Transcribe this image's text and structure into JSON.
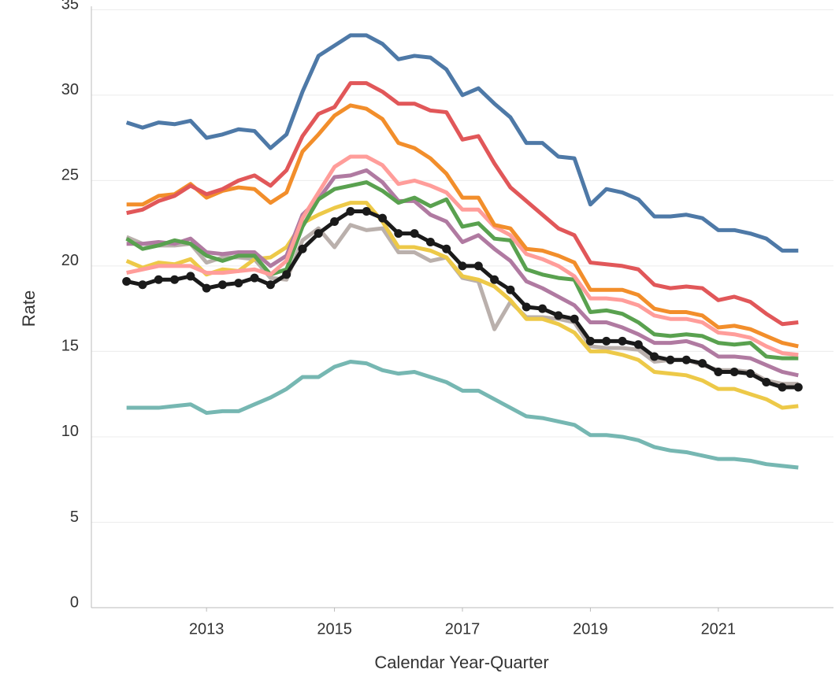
{
  "chart_data": {
    "type": "line",
    "x_label": "Calendar Year-Quarter",
    "y_label": "Rate",
    "x": [
      2011.75,
      2012,
      2012.25,
      2012.5,
      2012.75,
      2013,
      2013.25,
      2013.5,
      2013.75,
      2014,
      2014.25,
      2014.5,
      2014.75,
      2015,
      2015.25,
      2015.5,
      2015.75,
      2016,
      2016.25,
      2016.5,
      2016.75,
      2017,
      2017.25,
      2017.5,
      2017.75,
      2018,
      2018.25,
      2018.5,
      2018.75,
      2019,
      2019.25,
      2019.5,
      2019.75,
      2020,
      2020.25,
      2020.5,
      2020.75,
      2021,
      2021.25,
      2021.5,
      2021.75,
      2022,
      2022.25
    ],
    "xlim": [
      2011.2,
      2022.8
    ],
    "xticks": [
      2013,
      2015,
      2017,
      2019,
      2021
    ],
    "ylim": [
      0,
      35.2
    ],
    "yticks": [
      0,
      5,
      10,
      15,
      20,
      25,
      30,
      35
    ],
    "grid": true,
    "series": [
      {
        "color": "#76b7b2",
        "values": [
          11.7,
          11.7,
          11.7,
          11.8,
          11.9,
          11.4,
          11.5,
          11.5,
          11.9,
          12.3,
          12.8,
          13.5,
          13.5,
          14.1,
          14.4,
          14.3,
          13.9,
          13.7,
          13.8,
          13.5,
          13.2,
          12.7,
          12.7,
          12.2,
          11.7,
          11.2,
          11.1,
          10.9,
          10.7,
          10.1,
          10.1,
          10.0,
          9.8,
          9.4,
          9.2,
          9.1,
          8.9,
          8.7,
          8.7,
          8.6,
          8.4,
          8.3,
          8.2
        ]
      },
      {
        "color": "#bab0ac",
        "values": [
          21.7,
          21.3,
          21.2,
          21.2,
          21.3,
          20.2,
          20.5,
          20.5,
          20.4,
          19.3,
          19.2,
          21.5,
          22.2,
          21.1,
          22.4,
          22.1,
          22.2,
          20.8,
          20.8,
          20.3,
          20.5,
          19.3,
          19.1,
          16.3,
          17.9,
          17.0,
          17.0,
          16.9,
          16.7,
          15.3,
          15.2,
          15.2,
          15.1,
          14.4,
          14.5,
          14.5,
          14.2,
          13.9,
          13.9,
          13.8,
          13.3,
          13.1,
          13.1
        ]
      },
      {
        "color": "#edc948",
        "values": [
          20.3,
          19.9,
          20.2,
          20.1,
          20.4,
          19.5,
          19.8,
          19.7,
          20.4,
          20.5,
          21.1,
          22.5,
          23.0,
          23.4,
          23.7,
          23.7,
          22.6,
          21.1,
          21.1,
          20.9,
          20.5,
          19.4,
          19.2,
          18.8,
          18.0,
          16.9,
          16.9,
          16.6,
          16.1,
          15.0,
          15.0,
          14.8,
          14.5,
          13.8,
          13.7,
          13.6,
          13.3,
          12.8,
          12.8,
          12.5,
          12.2,
          11.7,
          11.8
        ]
      },
      {
        "color": "#b07aa1",
        "values": [
          21.3,
          21.3,
          21.4,
          21.3,
          21.6,
          20.8,
          20.7,
          20.8,
          20.8,
          20.0,
          20.6,
          23.0,
          23.9,
          25.2,
          25.3,
          25.6,
          24.9,
          23.8,
          23.8,
          23.0,
          22.6,
          21.4,
          21.8,
          21.0,
          20.3,
          19.1,
          18.7,
          18.2,
          17.7,
          16.7,
          16.7,
          16.4,
          16.0,
          15.5,
          15.5,
          15.6,
          15.3,
          14.7,
          14.7,
          14.6,
          14.2,
          13.8,
          13.6
        ]
      },
      {
        "color": "#59a14f",
        "values": [
          21.6,
          21.0,
          21.2,
          21.5,
          21.3,
          20.6,
          20.3,
          20.6,
          20.6,
          19.5,
          19.8,
          22.3,
          23.9,
          24.5,
          24.7,
          24.9,
          24.4,
          23.7,
          24.0,
          23.5,
          23.9,
          22.3,
          22.5,
          21.6,
          21.5,
          19.8,
          19.5,
          19.3,
          19.2,
          17.3,
          17.4,
          17.2,
          16.7,
          16.0,
          15.9,
          16.0,
          15.9,
          15.5,
          15.4,
          15.5,
          14.7,
          14.6,
          14.6
        ]
      },
      {
        "color": "#ff9d9a",
        "values": [
          19.6,
          19.8,
          20.0,
          20.0,
          20.0,
          19.6,
          19.6,
          19.7,
          19.8,
          19.5,
          20.3,
          22.8,
          24.3,
          25.8,
          26.4,
          26.4,
          25.9,
          24.8,
          25.0,
          24.7,
          24.3,
          23.3,
          23.3,
          22.3,
          21.8,
          20.7,
          20.4,
          20.0,
          19.4,
          18.1,
          18.1,
          18.0,
          17.7,
          17.1,
          16.9,
          16.9,
          16.7,
          16.1,
          16.0,
          15.8,
          15.3,
          14.9,
          14.8
        ]
      },
      {
        "color": "#f28e2b",
        "values": [
          23.6,
          23.6,
          24.1,
          24.2,
          24.8,
          24.0,
          24.4,
          24.6,
          24.5,
          23.7,
          24.3,
          26.7,
          27.7,
          28.8,
          29.4,
          29.2,
          28.6,
          27.2,
          26.9,
          26.3,
          25.4,
          24.0,
          24.0,
          22.4,
          22.2,
          21.0,
          20.9,
          20.6,
          20.2,
          18.6,
          18.6,
          18.6,
          18.3,
          17.5,
          17.3,
          17.3,
          17.1,
          16.4,
          16.5,
          16.3,
          15.9,
          15.5,
          15.3
        ]
      },
      {
        "color": "#e15759",
        "values": [
          23.1,
          23.3,
          23.8,
          24.1,
          24.7,
          24.2,
          24.5,
          25.0,
          25.3,
          24.7,
          25.6,
          27.6,
          28.9,
          29.3,
          30.7,
          30.7,
          30.2,
          29.5,
          29.5,
          29.1,
          29.0,
          27.4,
          27.6,
          26.0,
          24.6,
          23.8,
          23.0,
          22.2,
          21.8,
          20.2,
          20.1,
          20.0,
          19.8,
          18.9,
          18.7,
          18.8,
          18.7,
          18.0,
          18.2,
          17.9,
          17.2,
          16.6,
          16.7
        ]
      },
      {
        "color": "#4e79a7",
        "values": [
          28.4,
          28.1,
          28.4,
          28.3,
          28.5,
          27.5,
          27.7,
          28.0,
          27.9,
          26.9,
          27.7,
          30.2,
          32.3,
          32.9,
          33.5,
          33.5,
          33.0,
          32.1,
          32.3,
          32.2,
          31.5,
          30.0,
          30.4,
          29.5,
          28.7,
          27.2,
          27.2,
          26.4,
          26.3,
          23.6,
          24.5,
          24.3,
          23.9,
          22.9,
          22.9,
          23.0,
          22.8,
          22.1,
          22.1,
          21.9,
          21.6,
          20.9,
          20.9
        ]
      },
      {
        "color": "#1a1a1a",
        "markers": true,
        "values": [
          19.1,
          18.9,
          19.2,
          19.2,
          19.4,
          18.7,
          18.9,
          19.0,
          19.3,
          18.9,
          19.5,
          21.0,
          21.9,
          22.6,
          23.2,
          23.2,
          22.8,
          21.9,
          21.9,
          21.4,
          21.0,
          20.0,
          20.0,
          19.2,
          18.6,
          17.6,
          17.5,
          17.1,
          16.9,
          15.6,
          15.6,
          15.6,
          15.4,
          14.7,
          14.5,
          14.5,
          14.3,
          13.8,
          13.8,
          13.7,
          13.2,
          12.9,
          12.9
        ]
      }
    ]
  }
}
